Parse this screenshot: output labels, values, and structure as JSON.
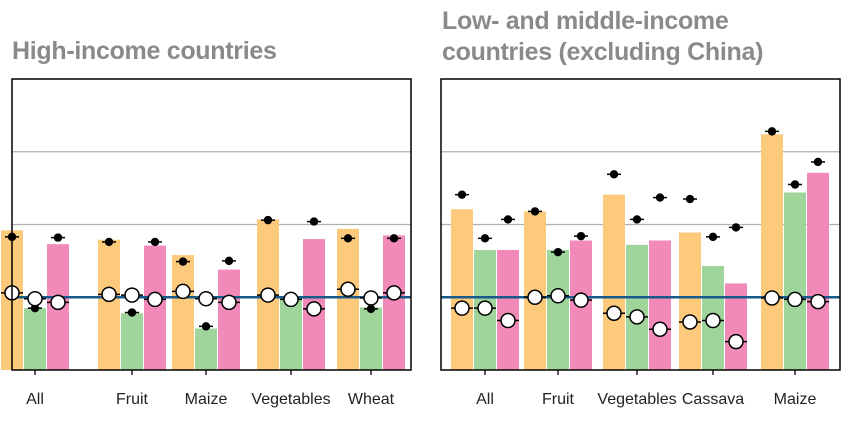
{
  "colors": {
    "orange": "#fdc97a",
    "green": "#9fd59a",
    "pink": "#f28ab9",
    "baseline": "#1a5a8a",
    "grid": "#b0b0b0",
    "dot": "#000000"
  },
  "chart_data": [
    {
      "type": "bar",
      "title": "High-income countries",
      "categories": [
        "All",
        "Fruit",
        "Maize",
        "Vegetables",
        "Wheat"
      ],
      "ylim": [
        0,
        4
      ],
      "grid": true,
      "gridlines": [
        1,
        2,
        3
      ],
      "baseline": 1,
      "series": [
        {
          "color": "orange",
          "bar": [
            1.92,
            1.79,
            1.58,
            2.07,
            1.94
          ],
          "filled_marker": [
            1.83,
            1.76,
            1.49,
            2.06,
            1.81
          ],
          "open_marker": [
            1.06,
            1.04,
            1.08,
            1.03,
            1.11
          ]
        },
        {
          "color": "green",
          "bar": [
            0.85,
            0.78,
            0.57,
            0.98,
            0.86
          ],
          "filled_marker": [
            0.85,
            0.79,
            0.6,
            0.98,
            0.84
          ],
          "open_marker": [
            0.98,
            1.03,
            0.98,
            0.97,
            0.99
          ]
        },
        {
          "color": "pink",
          "bar": [
            1.73,
            1.71,
            1.38,
            1.8,
            1.85
          ],
          "filled_marker": [
            1.82,
            1.76,
            1.5,
            2.04,
            1.81
          ],
          "open_marker": [
            0.93,
            0.97,
            0.93,
            0.84,
            1.06
          ]
        }
      ]
    },
    {
      "type": "bar",
      "title": "Low- and middle-income\ncountries (excluding China)",
      "categories": [
        "All",
        "Fruit",
        "Vegetables",
        "Cassava",
        "Maize"
      ],
      "ylim": [
        0,
        4
      ],
      "grid": true,
      "gridlines": [
        1,
        2,
        3
      ],
      "baseline": 1,
      "series": [
        {
          "color": "orange",
          "bar": [
            2.21,
            2.18,
            2.41,
            1.89,
            3.24
          ],
          "filled_marker": [
            2.41,
            2.18,
            2.69,
            2.35,
            3.28
          ],
          "open_marker": [
            0.85,
            1.0,
            0.78,
            0.66,
            0.99
          ]
        },
        {
          "color": "green",
          "bar": [
            1.65,
            1.65,
            1.72,
            1.43,
            2.44
          ],
          "filled_marker": [
            1.81,
            1.62,
            2.07,
            1.83,
            2.55
          ],
          "open_marker": [
            0.85,
            1.02,
            0.73,
            0.68,
            0.97
          ]
        },
        {
          "color": "pink",
          "bar": [
            1.65,
            1.78,
            1.78,
            1.19,
            2.71
          ],
          "filled_marker": [
            2.07,
            1.84,
            2.37,
            1.96,
            2.86
          ],
          "open_marker": [
            0.68,
            0.96,
            0.56,
            0.39,
            0.94
          ]
        }
      ]
    }
  ]
}
